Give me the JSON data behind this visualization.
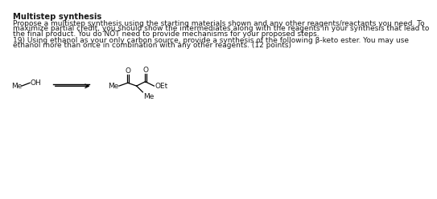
{
  "title": "Multistep synthesis",
  "p1_line1": "Propose a multistep synthesis using the starting materials shown and any other reagents/reactants you need. To",
  "p1_line2": "maximize partial credit, you should show the intermediates along with the reagents in your synthesis that lead to",
  "p1_line3": "the final product. You do NOT need to provide mechanisms for your proposed steps.",
  "p2_line1": "19) Using ethanol as your only carbon source, provide a synthesis of the following β-keto ester. You may use",
  "p2_line2": "ethanol more than once in combination with any other reagents. (12 points)",
  "background_color": "#ffffff",
  "text_color": "#1a1a1a",
  "font_size_title": 7.2,
  "font_size_body": 6.5,
  "font_size_chem": 6.5
}
